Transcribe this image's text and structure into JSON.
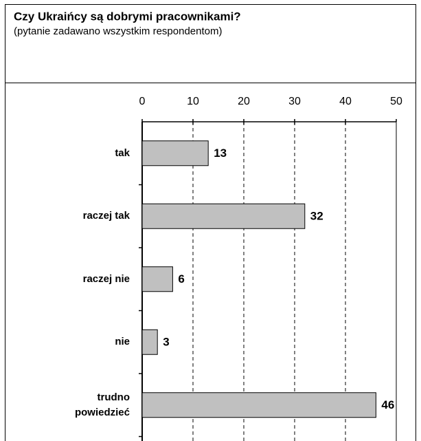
{
  "chart_data": {
    "type": "bar",
    "orientation": "horizontal",
    "title": "Czy Ukraińcy są dobrymi pracownikami?",
    "subtitle": "(pytanie zadawano wszystkim respondentom)",
    "categories": [
      "tak",
      "raczej tak",
      "raczej nie",
      "nie",
      "trudno powiedzieć"
    ],
    "values": [
      13,
      32,
      6,
      3,
      46
    ],
    "color": "#c0c0c0",
    "xlim": [
      0,
      50
    ],
    "xticks": [
      0,
      10,
      20,
      30,
      40,
      50
    ],
    "grid": true
  }
}
